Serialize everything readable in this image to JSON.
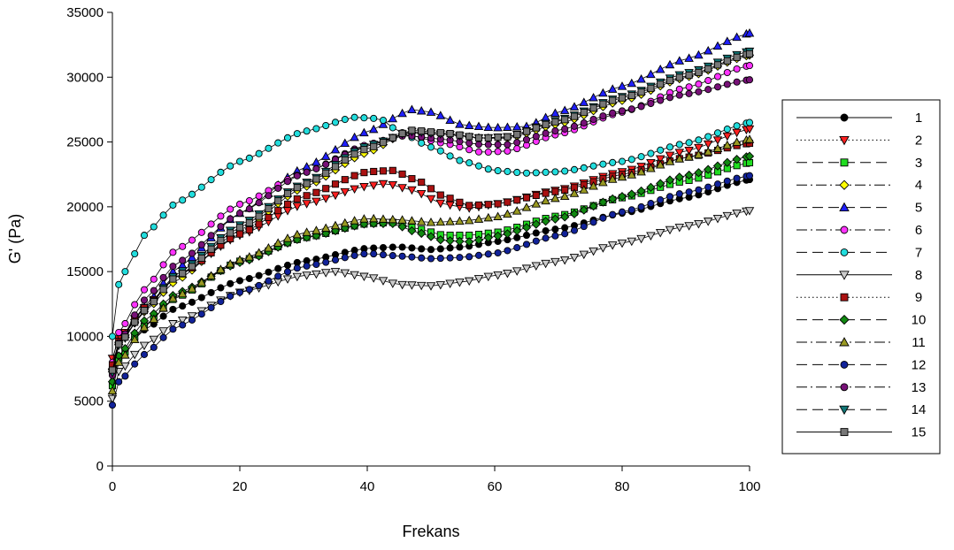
{
  "chart_data": {
    "type": "line",
    "title": "",
    "xlabel": "Frekans",
    "ylabel": "G' (Pa)",
    "xlim": [
      0,
      100
    ],
    "ylim": [
      0,
      35000
    ],
    "x_ticks": [
      "0",
      "20",
      "40",
      "60",
      "80",
      "100"
    ],
    "y_ticks": [
      "0",
      "5000",
      "10000",
      "15000",
      "20000",
      "25000",
      "30000",
      "35000"
    ],
    "grid": false,
    "legend_position": "right",
    "series": [
      {
        "name": "1",
        "color": "#000000",
        "marker": "circle",
        "dash": "solid",
        "keypoints": [
          [
            0,
            6500
          ],
          [
            1,
            8500
          ],
          [
            5,
            10500
          ],
          [
            10,
            12200
          ],
          [
            20,
            14300
          ],
          [
            30,
            15800
          ],
          [
            40,
            16800
          ],
          [
            45,
            16900
          ],
          [
            50,
            16700
          ],
          [
            55,
            16900
          ],
          [
            60,
            17300
          ],
          [
            70,
            18300
          ],
          [
            80,
            19500
          ],
          [
            90,
            20700
          ],
          [
            100,
            22100
          ]
        ]
      },
      {
        "name": "2",
        "color": "#ff2020",
        "marker": "tri-down",
        "dash": "dotted",
        "keypoints": [
          [
            0,
            8300
          ],
          [
            1,
            9800
          ],
          [
            5,
            12200
          ],
          [
            10,
            14600
          ],
          [
            20,
            17800
          ],
          [
            30,
            20200
          ],
          [
            40,
            21600
          ],
          [
            43,
            21800
          ],
          [
            47,
            21300
          ],
          [
            52,
            20200
          ],
          [
            56,
            19900
          ],
          [
            60,
            20200
          ],
          [
            70,
            21300
          ],
          [
            80,
            22700
          ],
          [
            90,
            24300
          ],
          [
            100,
            26000
          ]
        ]
      },
      {
        "name": "3",
        "color": "#20dd20",
        "marker": "square",
        "dash": "longdash",
        "keypoints": [
          [
            0,
            6200
          ],
          [
            1,
            8300
          ],
          [
            5,
            10800
          ],
          [
            10,
            13000
          ],
          [
            20,
            15800
          ],
          [
            30,
            17600
          ],
          [
            40,
            18700
          ],
          [
            44,
            18800
          ],
          [
            48,
            18300
          ],
          [
            52,
            17800
          ],
          [
            56,
            17800
          ],
          [
            60,
            18000
          ],
          [
            70,
            19300
          ],
          [
            80,
            20700
          ],
          [
            90,
            22000
          ],
          [
            100,
            23400
          ]
        ]
      },
      {
        "name": "4",
        "color": "#ffff00",
        "marker": "diamond",
        "dash": "dashdot",
        "keypoints": [
          [
            0,
            7500
          ],
          [
            1,
            9400
          ],
          [
            5,
            11900
          ],
          [
            10,
            14300
          ],
          [
            20,
            18200
          ],
          [
            30,
            21500
          ],
          [
            40,
            24200
          ],
          [
            46,
            25700
          ],
          [
            52,
            25600
          ],
          [
            58,
            25300
          ],
          [
            62,
            25300
          ],
          [
            70,
            26400
          ],
          [
            80,
            28200
          ],
          [
            90,
            30000
          ],
          [
            100,
            31700
          ]
        ]
      },
      {
        "name": "5",
        "color": "#2020ff",
        "marker": "tri-up",
        "dash": "longdash",
        "keypoints": [
          [
            0,
            7500
          ],
          [
            1,
            9600
          ],
          [
            5,
            12300
          ],
          [
            10,
            15200
          ],
          [
            20,
            19500
          ],
          [
            30,
            23000
          ],
          [
            40,
            25800
          ],
          [
            47,
            27500
          ],
          [
            50,
            27300
          ],
          [
            55,
            26300
          ],
          [
            60,
            26100
          ],
          [
            65,
            26200
          ],
          [
            70,
            27300
          ],
          [
            80,
            29300
          ],
          [
            90,
            31400
          ],
          [
            100,
            33400
          ]
        ]
      },
      {
        "name": "6",
        "color": "#ff33ff",
        "marker": "circle",
        "dash": "dashdot",
        "keypoints": [
          [
            0,
            8000
          ],
          [
            1,
            10300
          ],
          [
            5,
            13600
          ],
          [
            10,
            16700
          ],
          [
            20,
            20200
          ],
          [
            30,
            22600
          ],
          [
            40,
            24800
          ],
          [
            46,
            25600
          ],
          [
            52,
            24900
          ],
          [
            58,
            24200
          ],
          [
            62,
            24300
          ],
          [
            70,
            25600
          ],
          [
            80,
            27300
          ],
          [
            90,
            29200
          ],
          [
            100,
            30900
          ]
        ]
      },
      {
        "name": "7",
        "color": "#22dddd",
        "marker": "circle",
        "dash": "longdash",
        "keypoints": [
          [
            0,
            10000
          ],
          [
            1,
            14000
          ],
          [
            3,
            16000
          ],
          [
            5,
            17800
          ],
          [
            10,
            20300
          ],
          [
            20,
            23500
          ],
          [
            30,
            25800
          ],
          [
            38,
            26900
          ],
          [
            42,
            26800
          ],
          [
            45,
            25800
          ],
          [
            50,
            24600
          ],
          [
            55,
            23500
          ],
          [
            60,
            22800
          ],
          [
            65,
            22600
          ],
          [
            70,
            22700
          ],
          [
            80,
            23500
          ],
          [
            90,
            24900
          ],
          [
            100,
            26500
          ]
        ]
      },
      {
        "name": "8",
        "color": "#cccccc",
        "marker": "tri-down",
        "dash": "solid",
        "keypoints": [
          [
            0,
            5200
          ],
          [
            1,
            7300
          ],
          [
            5,
            9300
          ],
          [
            10,
            11100
          ],
          [
            20,
            13400
          ],
          [
            30,
            14700
          ],
          [
            35,
            15000
          ],
          [
            40,
            14600
          ],
          [
            45,
            14000
          ],
          [
            50,
            13900
          ],
          [
            55,
            14200
          ],
          [
            60,
            14700
          ],
          [
            70,
            15800
          ],
          [
            80,
            17200
          ],
          [
            90,
            18500
          ],
          [
            100,
            19700
          ]
        ]
      },
      {
        "name": "9",
        "color": "#aa1111",
        "marker": "square",
        "dash": "dotted",
        "keypoints": [
          [
            0,
            7800
          ],
          [
            1,
            9600
          ],
          [
            5,
            12200
          ],
          [
            10,
            14600
          ],
          [
            20,
            17900
          ],
          [
            30,
            20800
          ],
          [
            40,
            22700
          ],
          [
            44,
            22800
          ],
          [
            48,
            22000
          ],
          [
            52,
            20800
          ],
          [
            56,
            20100
          ],
          [
            60,
            20200
          ],
          [
            70,
            21200
          ],
          [
            80,
            22500
          ],
          [
            90,
            23800
          ],
          [
            100,
            24900
          ]
        ]
      },
      {
        "name": "10",
        "color": "#118811",
        "marker": "diamond",
        "dash": "longdash",
        "keypoints": [
          [
            0,
            6500
          ],
          [
            1,
            8500
          ],
          [
            5,
            11200
          ],
          [
            10,
            13300
          ],
          [
            20,
            15700
          ],
          [
            30,
            17600
          ],
          [
            40,
            18700
          ],
          [
            44,
            18700
          ],
          [
            48,
            18000
          ],
          [
            52,
            17400
          ],
          [
            56,
            17300
          ],
          [
            60,
            17700
          ],
          [
            70,
            19100
          ],
          [
            80,
            20800
          ],
          [
            90,
            22400
          ],
          [
            100,
            23900
          ]
        ]
      },
      {
        "name": "11",
        "color": "#999922",
        "marker": "tri-up",
        "dash": "dashdot",
        "keypoints": [
          [
            0,
            5800
          ],
          [
            1,
            8000
          ],
          [
            5,
            10700
          ],
          [
            10,
            13100
          ],
          [
            20,
            15900
          ],
          [
            30,
            18000
          ],
          [
            40,
            19100
          ],
          [
            45,
            19000
          ],
          [
            50,
            18800
          ],
          [
            55,
            18900
          ],
          [
            60,
            19200
          ],
          [
            70,
            20700
          ],
          [
            80,
            22300
          ],
          [
            90,
            23800
          ],
          [
            100,
            25200
          ]
        ]
      },
      {
        "name": "12",
        "color": "#112299",
        "marker": "circle",
        "dash": "longdash",
        "keypoints": [
          [
            0,
            4700
          ],
          [
            1,
            6500
          ],
          [
            5,
            8600
          ],
          [
            10,
            10700
          ],
          [
            20,
            13400
          ],
          [
            30,
            15400
          ],
          [
            40,
            16400
          ],
          [
            45,
            16200
          ],
          [
            50,
            16000
          ],
          [
            55,
            16100
          ],
          [
            60,
            16400
          ],
          [
            70,
            17800
          ],
          [
            80,
            19600
          ],
          [
            90,
            21100
          ],
          [
            100,
            22400
          ]
        ]
      },
      {
        "name": "13",
        "color": "#771177",
        "marker": "circle",
        "dash": "dashdot",
        "keypoints": [
          [
            0,
            7000
          ],
          [
            1,
            9500
          ],
          [
            5,
            12800
          ],
          [
            10,
            15600
          ],
          [
            20,
            19500
          ],
          [
            30,
            22600
          ],
          [
            40,
            24700
          ],
          [
            46,
            25500
          ],
          [
            52,
            25200
          ],
          [
            58,
            24800
          ],
          [
            62,
            24800
          ],
          [
            70,
            25900
          ],
          [
            80,
            27400
          ],
          [
            90,
            28700
          ],
          [
            100,
            29800
          ]
        ]
      },
      {
        "name": "14",
        "color": "#117777",
        "marker": "tri-down",
        "dash": "longdash",
        "keypoints": [
          [
            0,
            7200
          ],
          [
            1,
            9300
          ],
          [
            5,
            12000
          ],
          [
            10,
            14800
          ],
          [
            20,
            18600
          ],
          [
            30,
            21800
          ],
          [
            40,
            24700
          ],
          [
            47,
            25800
          ],
          [
            52,
            25600
          ],
          [
            58,
            25300
          ],
          [
            62,
            25400
          ],
          [
            70,
            26700
          ],
          [
            80,
            28500
          ],
          [
            90,
            30300
          ],
          [
            100,
            32000
          ]
        ]
      },
      {
        "name": "15",
        "color": "#777777",
        "marker": "square",
        "dash": "solid",
        "keypoints": [
          [
            0,
            7400
          ],
          [
            1,
            9400
          ],
          [
            5,
            12000
          ],
          [
            10,
            14600
          ],
          [
            20,
            18400
          ],
          [
            30,
            21700
          ],
          [
            40,
            24500
          ],
          [
            47,
            25900
          ],
          [
            52,
            25700
          ],
          [
            58,
            25300
          ],
          [
            62,
            25400
          ],
          [
            70,
            26600
          ],
          [
            80,
            28400
          ],
          [
            90,
            30100
          ],
          [
            100,
            31800
          ]
        ]
      }
    ]
  }
}
